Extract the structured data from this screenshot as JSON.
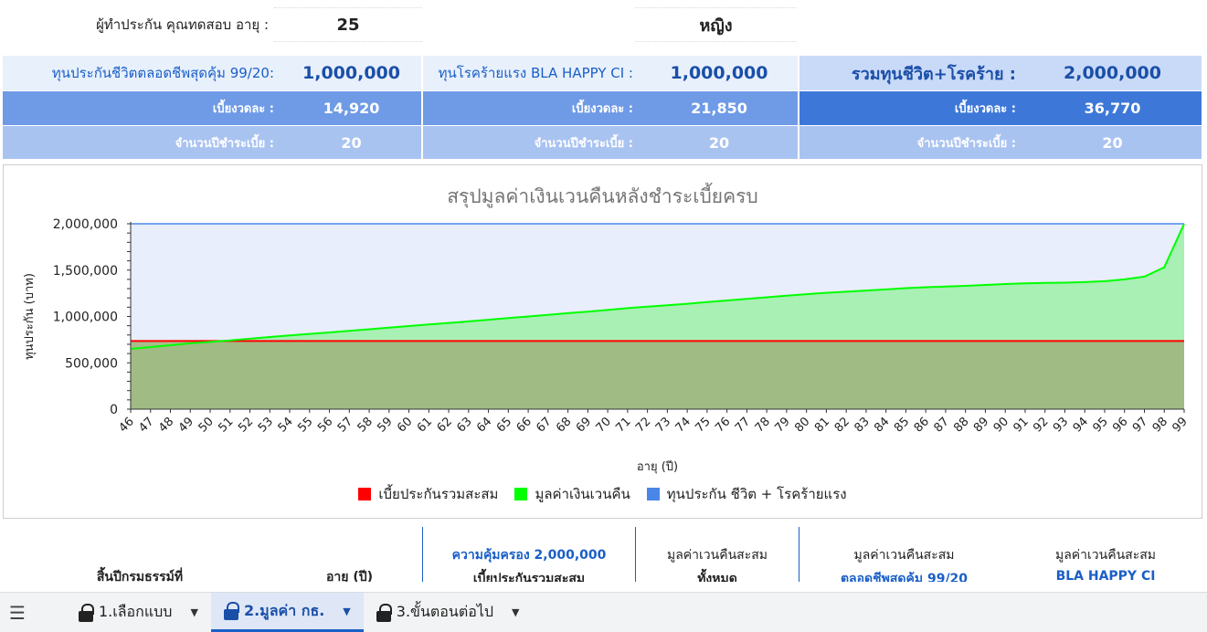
{
  "header": {
    "insured_label": "ผู้ทำประกัน คุณทดสอบ อายุ :",
    "age": "25",
    "gender": "หญิง"
  },
  "summary": {
    "life": {
      "sum_label": "ทุนประกันชีวิตตลอดชีพสุดคุ้ม 99/20:",
      "sum_value": "1,000,000",
      "premium_label": "เบี้ยงวดละ :",
      "premium_value": "14,920",
      "years_label": "จำนวนปีชำระเบี้ย :",
      "years_value": "20"
    },
    "ci": {
      "sum_label": "ทุนโรคร้ายแรง BLA HAPPY CI :",
      "sum_value": "1,000,000",
      "premium_label": "เบี้ยงวดละ :",
      "premium_value": "21,850",
      "years_label": "จำนวนปีชำระเบี้ย :",
      "years_value": "20"
    },
    "total": {
      "sum_label": "รวมทุนชีวิต+โรคร้าย :",
      "sum_value": "2,000,000",
      "premium_label": "เบี้ยงวดละ :",
      "premium_value": "36,770",
      "years_label": "จำนวนปีชำระเบี้ย :",
      "years_value": "20"
    }
  },
  "chart_data": {
    "type": "area",
    "title": "สรุปมูลค่าเงินเวนคืนหลังชำระเบี้ยครบ",
    "xlabel": "อายุ (ปี)",
    "ylabel": "ทุนประกัน (บาท)",
    "ylim": [
      0,
      2000000
    ],
    "y_ticks": [
      "0",
      "500,000",
      "1,000,000",
      "1,500,000",
      "2,000,000"
    ],
    "x": [
      46,
      47,
      48,
      49,
      50,
      51,
      52,
      53,
      54,
      55,
      56,
      57,
      58,
      59,
      60,
      61,
      62,
      63,
      64,
      65,
      66,
      67,
      68,
      69,
      70,
      71,
      72,
      73,
      74,
      75,
      76,
      77,
      78,
      79,
      80,
      81,
      82,
      83,
      84,
      85,
      86,
      87,
      88,
      89,
      90,
      91,
      92,
      93,
      94,
      95,
      96,
      97,
      98,
      99
    ],
    "series": [
      {
        "name": "เบี้ยประกันรวมสะสม",
        "color": "#ff0000",
        "values": [
          735400,
          735400,
          735400,
          735400,
          735400,
          735400,
          735400,
          735400,
          735400,
          735400,
          735400,
          735400,
          735400,
          735400,
          735400,
          735400,
          735400,
          735400,
          735400,
          735400,
          735400,
          735400,
          735400,
          735400,
          735400,
          735400,
          735400,
          735400,
          735400,
          735400,
          735400,
          735400,
          735400,
          735400,
          735400,
          735400,
          735400,
          735400,
          735400,
          735400,
          735400,
          735400,
          735400,
          735400,
          735400,
          735400,
          735400,
          735400,
          735400,
          735400,
          735400,
          735400,
          735400,
          735400
        ]
      },
      {
        "name": "มูลค่าเงินเวนคืน",
        "color": "#00ff00",
        "values": [
          650000,
          670000,
          690000,
          710000,
          725000,
          742000,
          760000,
          778000,
          795000,
          812000,
          828000,
          845000,
          862000,
          880000,
          897000,
          913000,
          930000,
          947000,
          965000,
          982000,
          1000000,
          1018000,
          1035000,
          1052000,
          1070000,
          1090000,
          1105000,
          1120000,
          1137000,
          1155000,
          1172000,
          1190000,
          1207000,
          1225000,
          1240000,
          1255000,
          1267000,
          1280000,
          1292000,
          1305000,
          1315000,
          1322000,
          1330000,
          1340000,
          1350000,
          1358000,
          1362000,
          1365000,
          1370000,
          1380000,
          1400000,
          1430000,
          1530000,
          2000000
        ]
      },
      {
        "name": "ทุนประกัน ชีวิต + โรคร้ายแรง",
        "color": "#4a86e8",
        "values": [
          2000000,
          2000000,
          2000000,
          2000000,
          2000000,
          2000000,
          2000000,
          2000000,
          2000000,
          2000000,
          2000000,
          2000000,
          2000000,
          2000000,
          2000000,
          2000000,
          2000000,
          2000000,
          2000000,
          2000000,
          2000000,
          2000000,
          2000000,
          2000000,
          2000000,
          2000000,
          2000000,
          2000000,
          2000000,
          2000000,
          2000000,
          2000000,
          2000000,
          2000000,
          2000000,
          2000000,
          2000000,
          2000000,
          2000000,
          2000000,
          2000000,
          2000000,
          2000000,
          2000000,
          2000000,
          2000000,
          2000000,
          2000000,
          2000000,
          2000000,
          2000000,
          2000000,
          2000000,
          2000000
        ]
      }
    ],
    "legend_position": "bottom",
    "grid": true
  },
  "table_header": {
    "col_policy_year": "สิ้นปีกรมธรรม์ที่",
    "col_age": "อายุ (ปี)",
    "col_coverage_line1": "ความคุ้มครอง 2,000,000",
    "col_coverage_line2": "เบี้ยประกันรวมสะสม",
    "col_cash_total_line1": "มูลค่าเวนคืนสะสม",
    "col_cash_total_line2": "ทั้งหมด",
    "col_cash_life_line1": "มูลค่าเวนคืนสะสม",
    "col_cash_life_line2": "ตลอดชีพสุดคุ้ม 99/20",
    "col_cash_ci_line1": "มูลค่าเวนคืนสะสม",
    "col_cash_ci_line2": "BLA HAPPY CI"
  },
  "tabs": {
    "menu_icon": "hamburger-icon",
    "items": [
      {
        "label": "1.เลือกแบบ",
        "icon": "lock-icon"
      },
      {
        "label": "2.มูลค่า กธ.",
        "icon": "lock-icon"
      },
      {
        "label": "3.ขั้นตอนต่อไป",
        "icon": "lock-icon"
      }
    ],
    "active_index": 1
  }
}
